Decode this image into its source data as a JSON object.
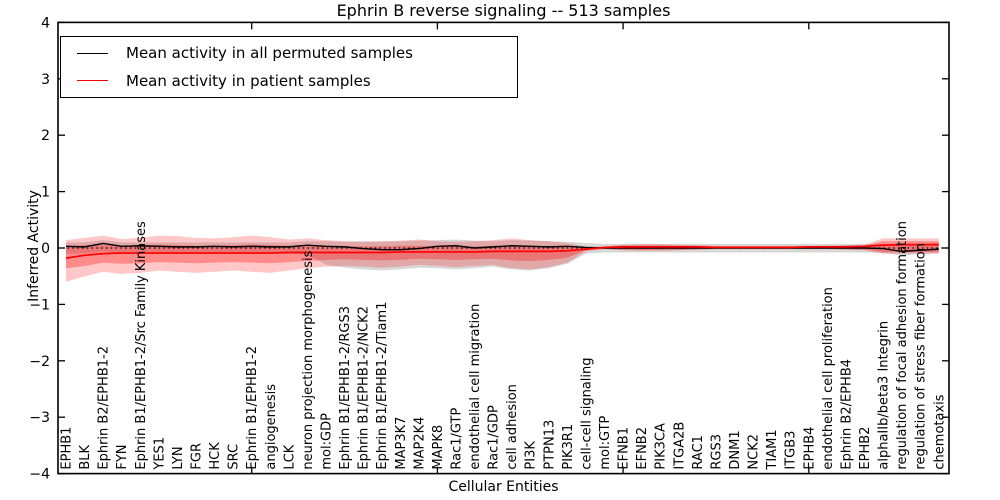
{
  "title": "Ephrin B reverse signaling -- 513 samples",
  "axes": {
    "ylabel": "Inferred Activity",
    "xlabel": "Cellular Entities",
    "yticks": [
      "4",
      "3",
      "2",
      "1",
      "0",
      "−1",
      "−2",
      "−3",
      "−4"
    ],
    "ytick_values": [
      4,
      3,
      2,
      1,
      0,
      -1,
      -2,
      -3,
      -4
    ],
    "xtick_indices": [
      10,
      20,
      30,
      40
    ],
    "ylim": [
      -4,
      4
    ]
  },
  "legend": {
    "items": [
      {
        "label": "Mean activity in all permuted samples",
        "color": "#000000"
      },
      {
        "label": "Mean activity in patient samples",
        "color": "#ff0000"
      }
    ]
  },
  "colors": {
    "frame": "#000000",
    "permuted_line": "#000000",
    "patient_line": "#ff0000",
    "zero_line": "#000000",
    "permuted_band": "rgba(125,125,125,0.30)",
    "patient_band_outer": "rgba(255,0,0,0.22)",
    "patient_band_inner": "rgba(255,0,0,0.30)"
  },
  "chart_data": {
    "type": "line",
    "title": "Ephrin B reverse signaling -- 513 samples",
    "xlabel": "Cellular Entities",
    "ylabel": "Inferred Activity",
    "ylim": [
      -4,
      4
    ],
    "grid": false,
    "legend_position": "upper left",
    "categories": [
      "EPHB1",
      "BLK",
      "Ephrin B2/EPHB1-2",
      "FYN",
      "Ephrin B1/EPHB1-2/Src Family Kinases",
      "YES1",
      "LYN",
      "FGR",
      "HCK",
      "SRC",
      "Ephrin B1/EPHB1-2",
      "angiogenesis",
      "LCK",
      "neuron projection morphogenesis",
      "mol:GDP",
      "Ephrin B1/EPHB1-2/RGS3",
      "Ephrin B1/EPHB1-2/NCK2",
      "Ephrin B1/EPHB1-2/Tiam1",
      "MAP3K7",
      "MAP2K4",
      "MAPK8",
      "Rac1/GTP",
      "endothelial cell migration",
      "Rac1/GDP",
      "cell adhesion",
      "PI3K",
      "PTPN13",
      "PIK3R1",
      "cell-cell signaling",
      "mol:GTP",
      "EFNB1",
      "EFNB2",
      "PIK3CA",
      "ITGA2B",
      "RAC1",
      "RGS3",
      "DNM1",
      "NCK2",
      "TIAM1",
      "ITGB3",
      "EPHB4",
      "endothelial cell proliferation",
      "Ephrin B2/EPHB4",
      "EPHB2",
      "alphaIIb/beta3 Integrin",
      "regulation of focal adhesion formation",
      "regulation of stress fiber formation",
      "chemotaxis"
    ],
    "series": [
      {
        "name": "Mean activity in all permuted samples",
        "color": "#000000",
        "values": [
          0.03,
          0.02,
          0.08,
          0.03,
          0.04,
          0.03,
          0.02,
          0.02,
          0.03,
          0.02,
          0.03,
          0.02,
          0.02,
          0.05,
          0.03,
          0.02,
          -0.01,
          -0.03,
          -0.03,
          -0.01,
          0.03,
          0.04,
          0.0,
          0.02,
          0.04,
          0.03,
          0.02,
          0.03,
          0.01,
          0.0,
          0.0,
          0.0,
          0.0,
          0.0,
          0.0,
          0.0,
          0.0,
          0.0,
          0.0,
          0.0,
          0.0,
          0.0,
          0.0,
          0.0,
          -0.01,
          -0.06,
          -0.04,
          -0.02
        ]
      },
      {
        "name": "Mean activity in patient samples",
        "color": "#ff0000",
        "values": [
          -0.18,
          -0.13,
          -0.1,
          -0.09,
          -0.09,
          -0.09,
          -0.09,
          -0.09,
          -0.09,
          -0.09,
          -0.09,
          -0.09,
          -0.08,
          -0.08,
          -0.08,
          -0.08,
          -0.08,
          -0.08,
          -0.07,
          -0.07,
          -0.07,
          -0.07,
          -0.07,
          -0.06,
          -0.06,
          -0.06,
          -0.06,
          -0.05,
          -0.02,
          0.01,
          0.02,
          0.02,
          0.02,
          0.02,
          0.02,
          0.01,
          0.01,
          0.01,
          0.01,
          0.01,
          0.02,
          0.02,
          0.02,
          0.03,
          0.05,
          0.06,
          0.06,
          0.06
        ]
      }
    ],
    "bands": [
      {
        "name": "permuted-std-band",
        "upper": [
          0.1,
          0.1,
          0.14,
          0.1,
          0.1,
          0.1,
          0.1,
          0.1,
          0.1,
          0.1,
          0.1,
          0.1,
          0.1,
          0.12,
          0.12,
          0.11,
          0.12,
          0.11,
          0.12,
          0.13,
          0.14,
          0.15,
          0.13,
          0.12,
          0.14,
          0.13,
          0.12,
          0.11,
          0.09,
          0.07,
          0.07,
          0.07,
          0.07,
          0.07,
          0.07,
          0.07,
          0.07,
          0.07,
          0.07,
          0.07,
          0.07,
          0.07,
          0.07,
          0.07,
          0.07,
          0.06,
          0.07,
          0.08
        ],
        "lower": [
          -0.1,
          -0.1,
          -0.06,
          -0.1,
          -0.1,
          -0.1,
          -0.1,
          -0.1,
          -0.1,
          -0.1,
          -0.1,
          -0.1,
          -0.1,
          -0.12,
          -0.3,
          -0.35,
          -0.38,
          -0.4,
          -0.38,
          -0.35,
          -0.36,
          -0.38,
          -0.36,
          -0.33,
          -0.38,
          -0.4,
          -0.36,
          -0.28,
          -0.1,
          -0.08,
          -0.08,
          -0.08,
          -0.08,
          -0.08,
          -0.08,
          -0.08,
          -0.08,
          -0.08,
          -0.08,
          -0.08,
          -0.08,
          -0.08,
          -0.08,
          -0.08,
          -0.09,
          -0.13,
          -0.11,
          -0.09
        ]
      },
      {
        "name": "patient-std-band-outer",
        "upper": [
          0.14,
          0.18,
          0.22,
          0.16,
          0.18,
          0.22,
          0.21,
          0.18,
          0.17,
          0.19,
          0.22,
          0.19,
          0.15,
          0.17,
          0.14,
          0.12,
          0.11,
          0.12,
          0.13,
          0.15,
          0.12,
          0.11,
          0.12,
          0.14,
          0.17,
          0.14,
          0.12,
          0.09,
          0.02,
          0.03,
          0.06,
          0.07,
          0.07,
          0.06,
          0.05,
          0.04,
          0.04,
          0.04,
          0.04,
          0.04,
          0.04,
          0.04,
          0.05,
          0.06,
          0.17,
          0.17,
          0.17,
          0.17
        ],
        "lower": [
          -0.6,
          -0.5,
          -0.42,
          -0.46,
          -0.44,
          -0.4,
          -0.42,
          -0.44,
          -0.42,
          -0.4,
          -0.42,
          -0.44,
          -0.4,
          -0.36,
          -0.33,
          -0.32,
          -0.33,
          -0.35,
          -0.33,
          -0.3,
          -0.32,
          -0.34,
          -0.32,
          -0.3,
          -0.36,
          -0.38,
          -0.34,
          -0.26,
          -0.06,
          -0.02,
          -0.04,
          -0.05,
          -0.05,
          -0.04,
          -0.03,
          -0.02,
          -0.02,
          -0.02,
          -0.02,
          -0.02,
          -0.02,
          -0.02,
          -0.03,
          -0.04,
          -0.1,
          -0.1,
          -0.1,
          -0.1
        ]
      },
      {
        "name": "patient-std-band-inner",
        "upper": [
          0.03,
          0.05,
          0.05,
          0.04,
          0.05,
          0.06,
          0.05,
          0.04,
          0.04,
          0.05,
          0.06,
          0.05,
          0.04,
          0.05,
          0.04,
          0.03,
          0.03,
          0.03,
          0.04,
          0.04,
          0.03,
          0.03,
          0.03,
          0.04,
          0.05,
          0.04,
          0.03,
          0.02,
          0.0,
          0.02,
          0.04,
          0.04,
          0.04,
          0.04,
          0.03,
          0.03,
          0.03,
          0.03,
          0.03,
          0.03,
          0.03,
          0.03,
          0.03,
          0.04,
          0.12,
          0.12,
          0.12,
          0.12
        ],
        "lower": [
          -0.36,
          -0.32,
          -0.26,
          -0.28,
          -0.27,
          -0.25,
          -0.26,
          -0.27,
          -0.26,
          -0.25,
          -0.26,
          -0.27,
          -0.25,
          -0.23,
          -0.21,
          -0.2,
          -0.21,
          -0.22,
          -0.21,
          -0.19,
          -0.2,
          -0.21,
          -0.2,
          -0.19,
          -0.22,
          -0.23,
          -0.21,
          -0.17,
          -0.04,
          -0.01,
          -0.03,
          -0.03,
          -0.03,
          -0.03,
          -0.02,
          -0.01,
          -0.01,
          -0.01,
          -0.01,
          -0.01,
          -0.01,
          -0.01,
          -0.02,
          -0.03,
          -0.07,
          -0.07,
          -0.07,
          -0.07
        ]
      }
    ],
    "zero_line": {
      "y": 0,
      "style": "dotted",
      "color": "#000000"
    }
  }
}
